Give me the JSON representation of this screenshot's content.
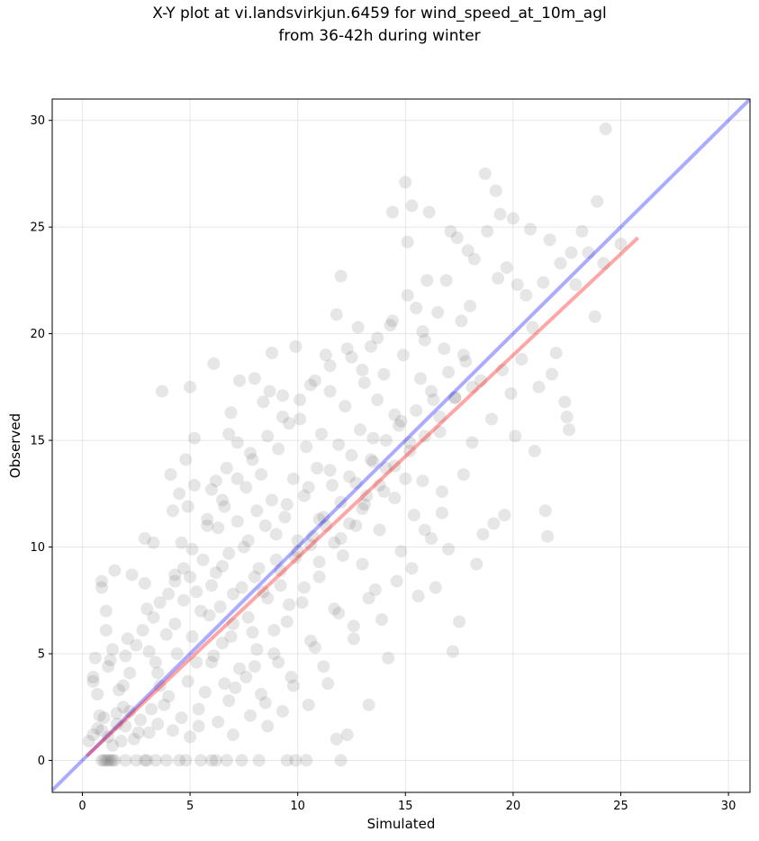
{
  "chart_data": {
    "type": "scatter",
    "title_line1": "X-Y plot at vi.landsvirkjun.6459 for wind_speed_at_10m_agl",
    "title_line2": "from 36-42h during winter",
    "xlabel": "Simulated",
    "ylabel": "Observed",
    "xlim": [
      -1.4,
      31.0
    ],
    "ylim": [
      -1.5,
      31.0
    ],
    "xticks": [
      0,
      5,
      10,
      15,
      20,
      25,
      30
    ],
    "yticks": [
      0,
      5,
      10,
      15,
      20,
      25,
      30
    ],
    "grid": true,
    "point_color": "#555555",
    "point_alpha": 0.15,
    "identity_line": {
      "color": "#0000ff",
      "alpha": 0.33,
      "x": [
        -1.4,
        31.0
      ],
      "y": [
        -1.4,
        31.0
      ]
    },
    "fit_line": {
      "color": "#ff0000",
      "alpha": 0.35,
      "x": [
        0.2,
        25.8
      ],
      "y": [
        0.2,
        24.5
      ]
    },
    "points": [
      [
        0.5,
        3.7
      ],
      [
        0.6,
        4.8
      ],
      [
        0.5,
        3.9
      ],
      [
        0.7,
        3.1
      ],
      [
        0.8,
        2.1
      ],
      [
        0.9,
        8.1
      ],
      [
        0.9,
        8.4
      ],
      [
        1.1,
        7.0
      ],
      [
        1.1,
        6.1
      ],
      [
        1.2,
        4.4
      ],
      [
        1.3,
        4.7
      ],
      [
        1.5,
        8.9
      ],
      [
        1.4,
        5.2
      ],
      [
        1.6,
        2.2
      ],
      [
        1.7,
        3.3
      ],
      [
        1.9,
        3.5
      ],
      [
        1.9,
        2.5
      ],
      [
        2.1,
        5.7
      ],
      [
        2.2,
        4.1
      ],
      [
        2.3,
        8.7
      ],
      [
        2.5,
        5.4
      ],
      [
        2.6,
        1.3
      ],
      [
        2.9,
        10.4
      ],
      [
        2.9,
        8.3
      ],
      [
        3.0,
        7.1
      ],
      [
        3.1,
        5.1
      ],
      [
        3.2,
        2.4
      ],
      [
        3.3,
        10.2
      ],
      [
        3.3,
        6.7
      ],
      [
        3.4,
        4.6
      ],
      [
        3.6,
        3.5
      ],
      [
        3.7,
        17.3
      ],
      [
        3.9,
        5.9
      ],
      [
        4.0,
        7.8
      ],
      [
        4.1,
        13.4
      ],
      [
        4.2,
        11.7
      ],
      [
        4.3,
        8.4
      ],
      [
        4.3,
        6.4
      ],
      [
        4.5,
        12.5
      ],
      [
        4.6,
        10.2
      ],
      [
        4.7,
        9.0
      ],
      [
        4.7,
        7.5
      ],
      [
        4.8,
        14.1
      ],
      [
        4.9,
        11.9
      ],
      [
        5.0,
        17.5
      ],
      [
        5.0,
        8.6
      ],
      [
        5.1,
        5.8
      ],
      [
        5.2,
        15.1
      ],
      [
        5.2,
        12.9
      ],
      [
        5.3,
        7.9
      ],
      [
        5.4,
        2.4
      ],
      [
        5.6,
        9.4
      ],
      [
        5.8,
        11.0
      ],
      [
        5.9,
        6.8
      ],
      [
        6.0,
        12.7
      ],
      [
        6.0,
        4.6
      ],
      [
        6.1,
        18.6
      ],
      [
        6.2,
        13.1
      ],
      [
        6.2,
        8.8
      ],
      [
        6.3,
        10.9
      ],
      [
        6.4,
        7.2
      ],
      [
        6.5,
        5.5
      ],
      [
        6.6,
        11.9
      ],
      [
        6.7,
        13.7
      ],
      [
        6.8,
        15.3
      ],
      [
        6.8,
        9.7
      ],
      [
        6.9,
        16.3
      ],
      [
        7.0,
        6.4
      ],
      [
        7.1,
        3.4
      ],
      [
        7.2,
        14.9
      ],
      [
        7.2,
        11.2
      ],
      [
        7.3,
        17.8
      ],
      [
        7.4,
        8.1
      ],
      [
        7.6,
        12.8
      ],
      [
        7.7,
        10.3
      ],
      [
        7.8,
        14.4
      ],
      [
        7.9,
        6.0
      ],
      [
        8.0,
        17.9
      ],
      [
        8.0,
        4.4
      ],
      [
        8.1,
        11.7
      ],
      [
        8.2,
        9.0
      ],
      [
        8.3,
        13.4
      ],
      [
        8.4,
        16.8
      ],
      [
        8.5,
        2.7
      ],
      [
        8.6,
        7.6
      ],
      [
        8.7,
        17.3
      ],
      [
        8.8,
        19.1
      ],
      [
        8.8,
        12.2
      ],
      [
        8.9,
        5.0
      ],
      [
        9.0,
        10.6
      ],
      [
        9.1,
        14.6
      ],
      [
        9.2,
        8.2
      ],
      [
        9.3,
        17.1
      ],
      [
        9.4,
        11.4
      ],
      [
        9.5,
        6.5
      ],
      [
        9.6,
        15.8
      ],
      [
        9.7,
        3.9
      ],
      [
        9.8,
        13.2
      ],
      [
        9.9,
        19.4
      ],
      [
        10.0,
        9.8
      ],
      [
        10.1,
        16.0
      ],
      [
        10.2,
        7.4
      ],
      [
        10.3,
        12.4
      ],
      [
        10.4,
        14.7
      ],
      [
        10.5,
        2.6
      ],
      [
        10.6,
        17.6
      ],
      [
        10.7,
        10.5
      ],
      [
        10.8,
        5.3
      ],
      [
        10.9,
        13.7
      ],
      [
        11.0,
        8.6
      ],
      [
        11.1,
        15.3
      ],
      [
        11.2,
        11.4
      ],
      [
        11.3,
        19.0
      ],
      [
        11.4,
        3.6
      ],
      [
        11.5,
        17.3
      ],
      [
        11.6,
        12.9
      ],
      [
        11.7,
        7.1
      ],
      [
        11.8,
        20.9
      ],
      [
        11.9,
        14.8
      ],
      [
        12.0,
        22.7
      ],
      [
        12.1,
        9.6
      ],
      [
        12.2,
        16.6
      ],
      [
        12.3,
        1.2
      ],
      [
        12.4,
        13.3
      ],
      [
        12.5,
        18.9
      ],
      [
        12.6,
        6.3
      ],
      [
        12.7,
        11.0
      ],
      [
        12.8,
        20.3
      ],
      [
        12.9,
        15.5
      ],
      [
        13.0,
        9.2
      ],
      [
        13.1,
        17.7
      ],
      [
        13.2,
        12.4
      ],
      [
        13.3,
        2.6
      ],
      [
        13.4,
        19.4
      ],
      [
        13.5,
        14.0
      ],
      [
        13.6,
        8.0
      ],
      [
        13.7,
        16.9
      ],
      [
        13.8,
        10.8
      ],
      [
        14.0,
        18.1
      ],
      [
        14.1,
        13.7
      ],
      [
        14.2,
        4.8
      ],
      [
        14.3,
        20.4
      ],
      [
        14.4,
        25.7
      ],
      [
        14.5,
        12.3
      ],
      [
        14.7,
        15.7
      ],
      [
        14.8,
        9.8
      ],
      [
        14.9,
        19.0
      ],
      [
        15.0,
        27.1
      ],
      [
        15.1,
        24.3
      ],
      [
        15.2,
        14.5
      ],
      [
        15.3,
        26.0
      ],
      [
        15.4,
        11.5
      ],
      [
        15.5,
        21.2
      ],
      [
        15.6,
        7.7
      ],
      [
        15.7,
        17.9
      ],
      [
        15.8,
        13.1
      ],
      [
        15.9,
        19.7
      ],
      [
        16.0,
        22.5
      ],
      [
        16.1,
        25.7
      ],
      [
        16.2,
        10.4
      ],
      [
        16.3,
        16.9
      ],
      [
        16.4,
        8.1
      ],
      [
        16.5,
        21.0
      ],
      [
        16.6,
        15.4
      ],
      [
        16.7,
        12.6
      ],
      [
        16.8,
        19.3
      ],
      [
        16.9,
        22.5
      ],
      [
        17.0,
        9.9
      ],
      [
        17.1,
        24.8
      ],
      [
        17.2,
        5.1
      ],
      [
        17.3,
        17.0
      ],
      [
        17.4,
        24.5
      ],
      [
        17.5,
        6.5
      ],
      [
        17.6,
        20.6
      ],
      [
        17.7,
        13.4
      ],
      [
        17.8,
        18.7
      ],
      [
        17.9,
        23.9
      ],
      [
        18.0,
        21.3
      ],
      [
        18.1,
        14.9
      ],
      [
        18.2,
        23.5
      ],
      [
        18.3,
        9.2
      ],
      [
        18.5,
        17.8
      ],
      [
        18.6,
        10.6
      ],
      [
        18.7,
        27.5
      ],
      [
        18.8,
        24.8
      ],
      [
        19.0,
        16.0
      ],
      [
        19.1,
        11.1
      ],
      [
        19.2,
        26.7
      ],
      [
        19.3,
        22.6
      ],
      [
        19.4,
        25.6
      ],
      [
        19.5,
        18.3
      ],
      [
        19.6,
        11.5
      ],
      [
        19.7,
        23.1
      ],
      [
        19.9,
        17.2
      ],
      [
        20.0,
        25.4
      ],
      [
        20.1,
        15.2
      ],
      [
        20.2,
        22.3
      ],
      [
        20.4,
        18.8
      ],
      [
        20.6,
        21.8
      ],
      [
        20.8,
        24.9
      ],
      [
        20.9,
        20.3
      ],
      [
        21.0,
        14.5
      ],
      [
        21.2,
        17.5
      ],
      [
        21.4,
        22.4
      ],
      [
        21.5,
        11.7
      ],
      [
        21.6,
        10.5
      ],
      [
        21.7,
        24.4
      ],
      [
        21.8,
        18.1
      ],
      [
        22.0,
        19.1
      ],
      [
        22.2,
        23.3
      ],
      [
        22.4,
        16.8
      ],
      [
        22.5,
        16.1
      ],
      [
        22.6,
        15.5
      ],
      [
        22.7,
        23.8
      ],
      [
        22.9,
        22.3
      ],
      [
        23.2,
        24.8
      ],
      [
        23.5,
        23.8
      ],
      [
        23.8,
        20.8
      ],
      [
        23.9,
        26.2
      ],
      [
        24.2,
        23.3
      ],
      [
        24.3,
        29.6
      ],
      [
        25.0,
        24.2
      ],
      [
        0.9,
        0.0
      ],
      [
        1.0,
        0.0
      ],
      [
        1.1,
        0.0
      ],
      [
        1.2,
        0.0
      ],
      [
        1.3,
        0.0
      ],
      [
        1.4,
        0.0
      ],
      [
        1.5,
        0.0
      ],
      [
        2.0,
        0.0
      ],
      [
        2.5,
        0.0
      ],
      [
        2.9,
        0.0
      ],
      [
        3.0,
        0.0
      ],
      [
        3.4,
        0.0
      ],
      [
        3.9,
        0.0
      ],
      [
        4.5,
        0.0
      ],
      [
        4.8,
        0.0
      ],
      [
        5.5,
        0.0
      ],
      [
        6.0,
        0.0
      ],
      [
        6.2,
        0.0
      ],
      [
        6.7,
        0.0
      ],
      [
        7.4,
        0.0
      ],
      [
        8.2,
        0.0
      ],
      [
        9.5,
        0.0
      ],
      [
        9.9,
        0.0
      ],
      [
        10.4,
        0.0
      ],
      [
        12.0,
        0.0
      ],
      [
        0.3,
        0.9
      ],
      [
        0.5,
        1.2
      ],
      [
        0.7,
        1.5
      ],
      [
        0.9,
        1.4
      ],
      [
        1.0,
        2.0
      ],
      [
        1.2,
        1.1
      ],
      [
        1.4,
        0.7
      ],
      [
        1.6,
        1.7
      ],
      [
        1.8,
        0.9
      ],
      [
        2.0,
        1.6
      ],
      [
        2.2,
        2.3
      ],
      [
        2.4,
        1.0
      ],
      [
        2.7,
        1.9
      ],
      [
        3.1,
        1.3
      ],
      [
        3.5,
        1.7
      ],
      [
        3.8,
        2.6
      ],
      [
        4.2,
        1.4
      ],
      [
        4.6,
        2.0
      ],
      [
        5.0,
        1.1
      ],
      [
        5.4,
        1.6
      ],
      [
        6.3,
        1.8
      ],
      [
        7.0,
        1.2
      ],
      [
        7.8,
        2.1
      ],
      [
        8.6,
        1.6
      ],
      [
        9.3,
        2.3
      ],
      [
        11.8,
        1.0
      ],
      [
        3.5,
        4.1
      ],
      [
        4.0,
        3.0
      ],
      [
        4.4,
        5.0
      ],
      [
        4.9,
        3.7
      ],
      [
        5.3,
        4.6
      ],
      [
        5.7,
        3.2
      ],
      [
        6.1,
        4.9
      ],
      [
        6.6,
        3.6
      ],
      [
        6.9,
        5.8
      ],
      [
        7.3,
        4.3
      ],
      [
        7.7,
        6.7
      ],
      [
        8.1,
        5.2
      ],
      [
        8.4,
        7.9
      ],
      [
        8.9,
        6.1
      ],
      [
        9.2,
        8.9
      ],
      [
        9.6,
        7.3
      ],
      [
        9.9,
        9.5
      ],
      [
        10.3,
        8.1
      ],
      [
        10.6,
        10.1
      ],
      [
        11.0,
        9.3
      ],
      [
        11.3,
        11.0
      ],
      [
        11.7,
        10.2
      ],
      [
        12.0,
        12.1
      ],
      [
        12.4,
        11.1
      ],
      [
        12.7,
        13.0
      ],
      [
        13.1,
        12.0
      ],
      [
        13.4,
        14.1
      ],
      [
        13.8,
        12.9
      ],
      [
        14.1,
        15.0
      ],
      [
        14.5,
        13.8
      ],
      [
        14.8,
        15.9
      ],
      [
        15.2,
        14.9
      ],
      [
        15.5,
        16.4
      ],
      [
        15.9,
        15.2
      ],
      [
        16.2,
        17.3
      ],
      [
        16.6,
        16.1
      ],
      [
        17.0,
        18.2
      ],
      [
        17.3,
        17.0
      ],
      [
        17.7,
        19.0
      ],
      [
        18.1,
        17.5
      ],
      [
        5.5,
        7.0
      ],
      [
        6.0,
        8.2
      ],
      [
        6.5,
        9.1
      ],
      [
        7.0,
        7.8
      ],
      [
        7.5,
        10.0
      ],
      [
        8.0,
        8.6
      ],
      [
        8.5,
        11.0
      ],
      [
        9.0,
        9.4
      ],
      [
        9.5,
        12.0
      ],
      [
        10.0,
        10.3
      ],
      [
        10.5,
        12.8
      ],
      [
        11.0,
        11.3
      ],
      [
        11.5,
        13.6
      ],
      [
        12.0,
        10.4
      ],
      [
        12.5,
        14.3
      ],
      [
        13.0,
        11.8
      ],
      [
        13.5,
        15.1
      ],
      [
        14.0,
        12.6
      ],
      [
        14.5,
        16.2
      ],
      [
        15.0,
        13.2
      ],
      [
        6.8,
        2.8
      ],
      [
        7.6,
        3.9
      ],
      [
        8.3,
        3.1
      ],
      [
        9.1,
        4.6
      ],
      [
        9.8,
        3.5
      ],
      [
        10.6,
        5.6
      ],
      [
        11.2,
        4.4
      ],
      [
        11.9,
        6.9
      ],
      [
        12.6,
        5.7
      ],
      [
        13.3,
        7.6
      ],
      [
        13.9,
        6.6
      ],
      [
        14.6,
        8.4
      ],
      [
        15.3,
        9.0
      ],
      [
        15.9,
        10.8
      ],
      [
        16.7,
        11.6
      ],
      [
        2.0,
        4.9
      ],
      [
        2.8,
        6.1
      ],
      [
        3.6,
        7.4
      ],
      [
        4.3,
        8.7
      ],
      [
        5.1,
        9.9
      ],
      [
        5.8,
        11.3
      ],
      [
        6.5,
        12.2
      ],
      [
        7.2,
        13.2
      ],
      [
        7.9,
        14.1
      ],
      [
        8.6,
        15.2
      ],
      [
        9.3,
        16.1
      ],
      [
        10.1,
        16.9
      ],
      [
        10.8,
        17.8
      ],
      [
        11.5,
        18.5
      ],
      [
        12.3,
        19.3
      ],
      [
        13.0,
        18.3
      ],
      [
        13.7,
        19.8
      ],
      [
        14.4,
        20.6
      ],
      [
        15.1,
        21.8
      ],
      [
        15.8,
        20.1
      ]
    ]
  }
}
